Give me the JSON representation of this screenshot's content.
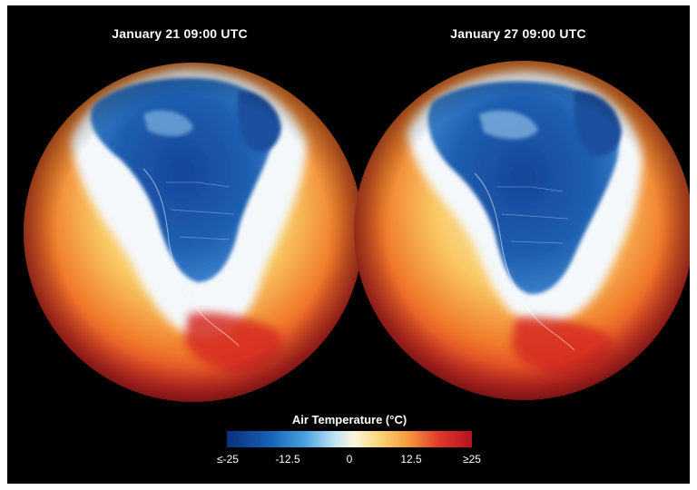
{
  "panels": [
    {
      "title": "January 21 09:00 UTC"
    },
    {
      "title": "January 27 09:00 UTC"
    }
  ],
  "legend": {
    "title": "Air Temperature (°C)",
    "ticks": [
      "≤-25",
      "-12.5",
      "0",
      "12.5",
      "≥25"
    ],
    "range": [
      -25,
      25
    ],
    "colors": [
      "#0b2f7a",
      "#1563b8",
      "#4aa2e0",
      "#bfe3f5",
      "#fbf6dc",
      "#f9d67a",
      "#f59a3b",
      "#e0362a",
      "#b3121f"
    ]
  }
}
